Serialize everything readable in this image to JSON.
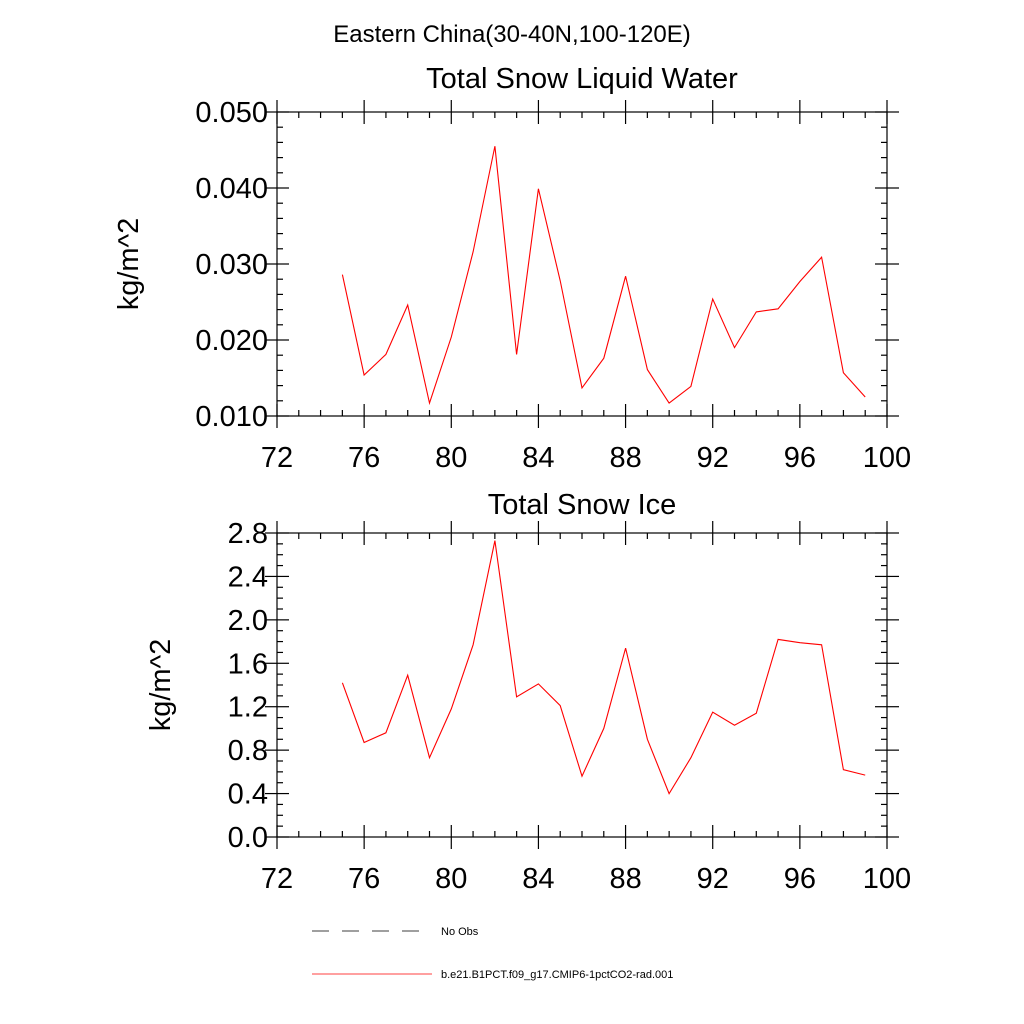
{
  "figure_title": "Eastern China(30-40N,100-120E)",
  "chart_data": [
    {
      "type": "line",
      "title": "Total Snow Liquid Water",
      "xlabel": "",
      "ylabel": "kg/m^2",
      "xlim": [
        72,
        100
      ],
      "ylim": [
        0.01,
        0.05
      ],
      "x_ticks": [
        72,
        76,
        80,
        84,
        88,
        92,
        96,
        100
      ],
      "x_tick_labels": [
        "72",
        "76",
        "80",
        "84",
        "88",
        "92",
        "96",
        "100"
      ],
      "x_minor_step": 1,
      "y_ticks": [
        0.01,
        0.02,
        0.03,
        0.04,
        0.05
      ],
      "y_tick_labels": [
        "0.010",
        "0.020",
        "0.030",
        "0.040",
        "0.050"
      ],
      "y_minor_step": 0.002,
      "grid": false,
      "series": [
        {
          "name": "b.e21.B1PCT.f09_g17.CMIP6-1pctCO2-rad.001",
          "color": "#ff0000",
          "x": [
            75,
            76,
            77,
            78,
            79,
            80,
            81,
            82,
            83,
            84,
            85,
            86,
            87,
            88,
            89,
            90,
            91,
            92,
            93,
            94,
            95,
            96,
            97,
            98,
            99
          ],
          "values": [
            0.0286,
            0.0154,
            0.0181,
            0.0246,
            0.0117,
            0.0204,
            0.0316,
            0.0455,
            0.0181,
            0.0399,
            0.0278,
            0.0137,
            0.0176,
            0.0284,
            0.0161,
            0.0117,
            0.0139,
            0.0254,
            0.019,
            0.0237,
            0.0241,
            0.0277,
            0.0309,
            0.0157,
            0.0125
          ]
        }
      ]
    },
    {
      "type": "line",
      "title": "Total Snow Ice",
      "xlabel": "",
      "ylabel": "kg/m^2",
      "xlim": [
        72,
        100
      ],
      "ylim": [
        0.0,
        2.8
      ],
      "x_ticks": [
        72,
        76,
        80,
        84,
        88,
        92,
        96,
        100
      ],
      "x_tick_labels": [
        "72",
        "76",
        "80",
        "84",
        "88",
        "92",
        "96",
        "100"
      ],
      "x_minor_step": 1,
      "y_ticks": [
        0.0,
        0.4,
        0.8,
        1.2,
        1.6,
        2.0,
        2.4,
        2.8
      ],
      "y_tick_labels": [
        "0.0",
        "0.4",
        "0.8",
        "1.2",
        "1.6",
        "2.0",
        "2.4",
        "2.8"
      ],
      "y_minor_step": 0.1,
      "grid": false,
      "series": [
        {
          "name": "b.e21.B1PCT.f09_g17.CMIP6-1pctCO2-rad.001",
          "color": "#ff0000",
          "x": [
            75,
            76,
            77,
            78,
            79,
            80,
            81,
            82,
            83,
            84,
            85,
            86,
            87,
            88,
            89,
            90,
            91,
            92,
            93,
            94,
            95,
            96,
            97,
            98,
            99
          ],
          "values": [
            1.42,
            0.87,
            0.96,
            1.49,
            0.73,
            1.18,
            1.77,
            2.73,
            1.29,
            1.41,
            1.21,
            0.56,
            1.0,
            1.74,
            0.9,
            0.4,
            0.73,
            1.15,
            1.03,
            1.14,
            1.82,
            1.79,
            1.77,
            0.62,
            0.57
          ]
        }
      ]
    }
  ],
  "legend": {
    "placement": "bottom",
    "items": [
      {
        "label": "No Obs",
        "style": "dashed",
        "color": "#000000"
      },
      {
        "label": "b.e21.B1PCT.f09_g17.CMIP6-1pctCO2-rad.001",
        "style": "solid",
        "color": "#ff0000"
      }
    ]
  }
}
